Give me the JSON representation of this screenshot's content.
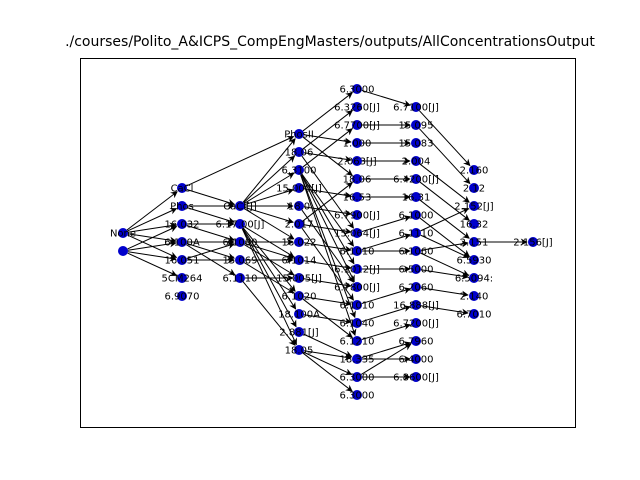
{
  "title": "./courses/Polito_A&ICPS_CompEngMasters/outputs/AllConcentrationsOutput",
  "node_color": "#0000cc",
  "nodes": [
    {
      "id": "n0",
      "label": "None"
    },
    {
      "id": "n1",
      "label": ""
    },
    {
      "id": "c1",
      "label": "CaCl"
    },
    {
      "id": "c2",
      "label": "Phos"
    },
    {
      "id": "c3",
      "label": "16.032"
    },
    {
      "id": "c4",
      "label": "6.100A"
    },
    {
      "id": "c5",
      "label": "16.051"
    },
    {
      "id": "c6",
      "label": "5CM264"
    },
    {
      "id": "c7",
      "label": "6.9070"
    },
    {
      "id": "d1",
      "label": "CaCl[J]"
    },
    {
      "id": "d2",
      "label": "6.17.00[J]"
    },
    {
      "id": "d3",
      "label": "6.1000"
    },
    {
      "id": "d4",
      "label": "15.069"
    },
    {
      "id": "d5",
      "label": "6.1110"
    },
    {
      "id": "e1",
      "label": "PhosII"
    },
    {
      "id": "e2",
      "label": "18.06"
    },
    {
      "id": "e3",
      "label": "6.3100"
    },
    {
      "id": "e4",
      "label": "15.000[J]"
    },
    {
      "id": "e5",
      "label": "18.0"
    },
    {
      "id": "e6",
      "label": "2.017"
    },
    {
      "id": "e7",
      "label": "16.022"
    },
    {
      "id": "e8",
      "label": "6.1014"
    },
    {
      "id": "e9",
      "label": "15.005[J]"
    },
    {
      "id": "e10",
      "label": "6.1020"
    },
    {
      "id": "e11",
      "label": "18.100A"
    },
    {
      "id": "e12",
      "label": "2.881[J]"
    },
    {
      "id": "e13",
      "label": "18.05"
    },
    {
      "id": "f1",
      "label": "6.3000"
    },
    {
      "id": "f2",
      "label": "6.3260[J]"
    },
    {
      "id": "f3",
      "label": "6.7700[J]"
    },
    {
      "id": "f4",
      "label": "1.000"
    },
    {
      "id": "f5",
      "label": "2.063[J]"
    },
    {
      "id": "f6",
      "label": "18.06"
    },
    {
      "id": "f7",
      "label": "16.53"
    },
    {
      "id": "f8",
      "label": "6.7900[J]"
    },
    {
      "id": "f9",
      "label": "15.064[J]"
    },
    {
      "id": "f10",
      "label": "6.1010"
    },
    {
      "id": "f11",
      "label": "6.1012[J]"
    },
    {
      "id": "f12",
      "label": "6.7800[J]"
    },
    {
      "id": "f13",
      "label": "6.1010"
    },
    {
      "id": "f14",
      "label": "6.1040"
    },
    {
      "id": "f15",
      "label": "6.1210"
    },
    {
      "id": "f16",
      "label": "18.335"
    },
    {
      "id": "f17",
      "label": "6.3000"
    },
    {
      "id": "f18",
      "label": "6.3000"
    },
    {
      "id": "g1",
      "label": "6.7100[J]"
    },
    {
      "id": "g2",
      "label": "15.095"
    },
    {
      "id": "g3",
      "label": "15.083"
    },
    {
      "id": "g4",
      "label": "2.004"
    },
    {
      "id": "g5",
      "label": "6.4200[J]"
    },
    {
      "id": "g6",
      "label": "16.31"
    },
    {
      "id": "g7",
      "label": "6.1000"
    },
    {
      "id": "g8",
      "label": "6.1110"
    },
    {
      "id": "g9",
      "label": "6.1060"
    },
    {
      "id": "g10",
      "label": "6.5000"
    },
    {
      "id": "g11",
      "label": "6.2060"
    },
    {
      "id": "g12",
      "label": "16.888[J]"
    },
    {
      "id": "g13",
      "label": "6.7200[J]"
    },
    {
      "id": "g14",
      "label": "6.7960"
    },
    {
      "id": "g15",
      "label": "6.4000"
    },
    {
      "id": "g16",
      "label": "6.8600[J]"
    },
    {
      "id": "h1",
      "label": "2.160"
    },
    {
      "id": "h2",
      "label": "2.12"
    },
    {
      "id": "h3",
      "label": "2.152[J]"
    },
    {
      "id": "h4",
      "label": "16.32"
    },
    {
      "id": "h5",
      "label": "2.151"
    },
    {
      "id": "h6",
      "label": "6.5930"
    },
    {
      "id": "h7",
      "label": "6.5094:"
    },
    {
      "id": "h8",
      "label": "2.140"
    },
    {
      "id": "h9",
      "label": "6.7010"
    },
    {
      "id": "i1",
      "label": "2.156[J]"
    }
  ],
  "edges": [
    [
      "n0",
      "c1"
    ],
    [
      "n0",
      "c2"
    ],
    [
      "n0",
      "c3"
    ],
    [
      "n0",
      "c4"
    ],
    [
      "n0",
      "c5"
    ],
    [
      "n1",
      "c4"
    ],
    [
      "n1",
      "c5"
    ],
    [
      "n1",
      "c6"
    ],
    [
      "n1",
      "c3"
    ],
    [
      "c1",
      "d1"
    ],
    [
      "c2",
      "d1"
    ],
    [
      "c2",
      "d2"
    ],
    [
      "c3",
      "d2"
    ],
    [
      "c4",
      "d3"
    ],
    [
      "c4",
      "d4"
    ],
    [
      "c4",
      "d5"
    ],
    [
      "c5",
      "d3"
    ],
    [
      "c5",
      "d4"
    ],
    [
      "c3",
      "d3"
    ],
    [
      "c1",
      "e1"
    ],
    [
      "d1",
      "e1"
    ],
    [
      "d1",
      "e2"
    ],
    [
      "d1",
      "e3"
    ],
    [
      "d1",
      "e4"
    ],
    [
      "d1",
      "e5"
    ],
    [
      "d1",
      "e6"
    ],
    [
      "d1",
      "e7"
    ],
    [
      "d2",
      "e8"
    ],
    [
      "d2",
      "e10"
    ],
    [
      "d2",
      "e11"
    ],
    [
      "d2",
      "e12"
    ],
    [
      "d2",
      "e13"
    ],
    [
      "d3",
      "e7"
    ],
    [
      "d3",
      "e8"
    ],
    [
      "d3",
      "e9"
    ],
    [
      "d4",
      "e8"
    ],
    [
      "d4",
      "e10"
    ],
    [
      "d5",
      "e9"
    ],
    [
      "d5",
      "e13"
    ],
    [
      "e1",
      "f1"
    ],
    [
      "e1",
      "f4"
    ],
    [
      "e1",
      "f6"
    ],
    [
      "e2",
      "f2"
    ],
    [
      "e2",
      "f5"
    ],
    [
      "e2",
      "f9"
    ],
    [
      "e3",
      "f3"
    ],
    [
      "e3",
      "f10"
    ],
    [
      "e3",
      "f11"
    ],
    [
      "e3",
      "f12"
    ],
    [
      "e3",
      "f14"
    ],
    [
      "e3",
      "f15"
    ],
    [
      "e4",
      "f7"
    ],
    [
      "e5",
      "f8"
    ],
    [
      "e5",
      "f12"
    ],
    [
      "e6",
      "f6"
    ],
    [
      "e6",
      "f9"
    ],
    [
      "e6",
      "f13"
    ],
    [
      "e7",
      "f10"
    ],
    [
      "e8",
      "f11"
    ],
    [
      "e9",
      "f12"
    ],
    [
      "e10",
      "f13"
    ],
    [
      "e10",
      "f15"
    ],
    [
      "e11",
      "f14"
    ],
    [
      "e12",
      "f16"
    ],
    [
      "e13",
      "f16"
    ],
    [
      "e13",
      "f17"
    ],
    [
      "e13",
      "f18"
    ],
    [
      "f1",
      "g1"
    ],
    [
      "f3",
      "g2"
    ],
    [
      "f4",
      "g3"
    ],
    [
      "f5",
      "g4"
    ],
    [
      "f6",
      "g5"
    ],
    [
      "f7",
      "g6"
    ],
    [
      "f9",
      "g7"
    ],
    [
      "f10",
      "g8"
    ],
    [
      "f10",
      "g9"
    ],
    [
      "f11",
      "g10"
    ],
    [
      "f13",
      "g11"
    ],
    [
      "f14",
      "g12"
    ],
    [
      "f15",
      "g13"
    ],
    [
      "f16",
      "g14"
    ],
    [
      "f16",
      "g15"
    ],
    [
      "f17",
      "g16"
    ],
    [
      "f17",
      "g14"
    ],
    [
      "g1",
      "h1"
    ],
    [
      "g2",
      "h2"
    ],
    [
      "g4",
      "h3"
    ],
    [
      "g5",
      "h4"
    ],
    [
      "g6",
      "h5"
    ],
    [
      "g7",
      "h6"
    ],
    [
      "g8",
      "h6"
    ],
    [
      "g9",
      "h7"
    ],
    [
      "g10",
      "h7"
    ],
    [
      "g11",
      "h8"
    ],
    [
      "g12",
      "h9"
    ],
    [
      "g9",
      "h5"
    ],
    [
      "g8",
      "h3"
    ],
    [
      "h5",
      "i1"
    ]
  ]
}
